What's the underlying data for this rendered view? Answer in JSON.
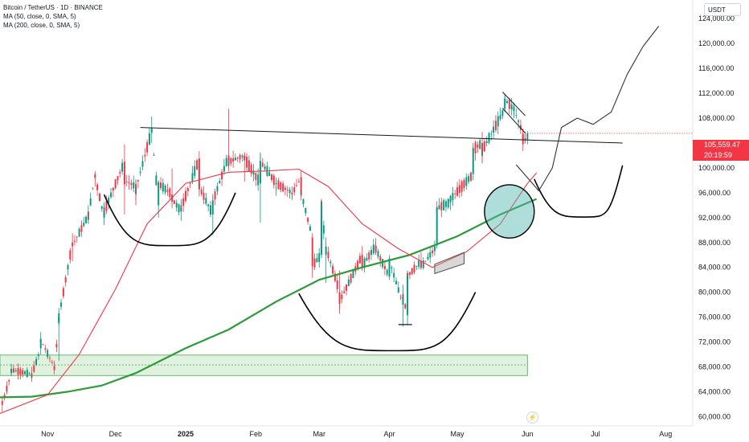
{
  "header": {
    "title": "Bitcoin / TetherUS · 1D · BINANCE",
    "ma50_label": "MA (50, close, 0, SMA, 5)",
    "ma200_label": "MA (200, close, 0, SMA, 5)",
    "currency_button": "USDT"
  },
  "price_tag": {
    "price": "105,559.47",
    "countdown": "20:19:59",
    "color": "#f23645"
  },
  "colors": {
    "up": "#089981",
    "down": "#f23645",
    "ma50": "#f23645",
    "ma200": "#2e9b3a",
    "zone": "#a5d6a7"
  },
  "icons": {
    "flash": "lightning-icon"
  },
  "chart_data": {
    "type": "candlestick",
    "title": "Bitcoin / TetherUS · 1D · BINANCE",
    "x_ticks": [
      "Nov",
      "Dec",
      "2025",
      "Feb",
      "Mar",
      "Apr",
      "May",
      "Jun",
      "Jul",
      "Aug"
    ],
    "y_ticks": [
      "60,000.00",
      "64,000.00",
      "68,000.00",
      "72,000.00",
      "76,000.00",
      "80,000.00",
      "84,000.00",
      "88,000.00",
      "92,000.00",
      "96,000.00",
      "100,000.00",
      "104,000.00",
      "108,000.00",
      "112,000.00",
      "116,000.00",
      "120,000.00",
      "124,000.00"
    ],
    "y_range": [
      58500,
      127000
    ],
    "date_range": [
      "2024-10-11",
      "2025-08-13"
    ],
    "ohlc_points": [
      [
        "2024-10-12",
        62500,
        63000,
        60800,
        62000
      ],
      [
        "2024-10-16",
        67000,
        68500,
        66500,
        67500
      ],
      [
        "2024-10-25",
        66800,
        68000,
        65600,
        66600
      ],
      [
        "2024-10-29",
        71000,
        73600,
        70000,
        72300
      ],
      [
        "2024-11-04",
        68000,
        69000,
        66800,
        67800
      ],
      [
        "2024-11-06",
        75000,
        76500,
        69000,
        76000
      ],
      [
        "2024-11-12",
        88000,
        89500,
        85000,
        87500
      ],
      [
        "2024-11-19",
        92300,
        94000,
        91000,
        92300
      ],
      [
        "2024-11-22",
        99000,
        99500,
        97000,
        98500
      ],
      [
        "2024-11-26",
        92000,
        94500,
        90800,
        93000
      ],
      [
        "2024-12-05",
        101000,
        103800,
        92500,
        98000
      ],
      [
        "2024-12-10",
        97000,
        98000,
        94000,
        96600
      ],
      [
        "2024-12-17",
        106000,
        108300,
        104000,
        106000
      ],
      [
        "2024-12-20",
        94000,
        98000,
        92000,
        97500
      ],
      [
        "2024-12-26",
        95700,
        99900,
        93500,
        95000
      ],
      [
        "2024-12-30",
        93000,
        95000,
        91500,
        93500
      ],
      [
        "2025-01-07",
        101500,
        102700,
        96000,
        96900
      ],
      [
        "2025-01-13",
        92500,
        95800,
        89200,
        94500
      ],
      [
        "2025-01-20",
        102000,
        109500,
        99500,
        101000
      ],
      [
        "2025-01-27",
        102000,
        102500,
        97800,
        101500
      ],
      [
        "2025-02-03",
        97500,
        102500,
        91200,
        101000
      ],
      [
        "2025-02-10",
        97500,
        98500,
        95500,
        97500
      ],
      [
        "2025-02-17",
        96000,
        97000,
        95000,
        95800
      ],
      [
        "2025-02-21",
        98500,
        99500,
        94800,
        96000
      ],
      [
        "2025-02-26",
        88800,
        89500,
        82300,
        84300
      ],
      [
        "2025-03-02",
        86000,
        95000,
        85500,
        94200
      ],
      [
        "2025-03-04",
        86000,
        88800,
        81500,
        87200
      ],
      [
        "2025-03-10",
        80000,
        83500,
        76600,
        78500
      ],
      [
        "2025-03-20",
        86000,
        87400,
        83600,
        84200
      ],
      [
        "2025-03-26",
        87500,
        88700,
        86000,
        86900
      ],
      [
        "2025-04-01",
        82500,
        85500,
        82000,
        85100
      ],
      [
        "2025-04-07",
        78000,
        81200,
        74500,
        79200
      ],
      [
        "2025-04-09",
        76300,
        83500,
        74700,
        82600
      ],
      [
        "2025-04-15",
        85000,
        86500,
        83600,
        84000
      ],
      [
        "2025-04-22",
        87500,
        93800,
        87000,
        93500
      ],
      [
        "2025-04-28",
        94500,
        95500,
        93200,
        95000
      ],
      [
        "2025-05-08",
        99000,
        104000,
        98000,
        103000
      ],
      [
        "2025-05-12",
        104000,
        105800,
        100700,
        102800
      ],
      [
        "2025-05-22",
        109500,
        111900,
        109000,
        111000
      ],
      [
        "2025-05-26",
        109400,
        110500,
        108500,
        109500
      ],
      [
        "2025-05-30",
        105500,
        106300,
        103600,
        104600
      ],
      [
        "2025-06-01",
        104600,
        105900,
        103800,
        105559
      ]
    ],
    "ma50_points": [
      [
        "2024-10-11",
        60500
      ],
      [
        "2024-11-01",
        63500
      ],
      [
        "2024-11-15",
        70000
      ],
      [
        "2024-12-01",
        80500
      ],
      [
        "2024-12-15",
        91000
      ],
      [
        "2025-01-01",
        97500
      ],
      [
        "2025-01-20",
        99300
      ],
      [
        "2025-02-05",
        99500
      ],
      [
        "2025-02-20",
        99800
      ],
      [
        "2025-03-05",
        97000
      ],
      [
        "2025-03-20",
        91000
      ],
      [
        "2025-04-05",
        87000
      ],
      [
        "2025-04-20",
        84000
      ],
      [
        "2025-05-05",
        86500
      ],
      [
        "2025-05-20",
        91000
      ],
      [
        "2025-06-01",
        97500
      ],
      [
        "2025-06-05",
        99200
      ]
    ],
    "ma200_points": [
      [
        "2024-10-11",
        63100
      ],
      [
        "2024-10-25",
        63200
      ],
      [
        "2024-11-10",
        64000
      ],
      [
        "2024-11-25",
        65000
      ],
      [
        "2024-12-10",
        67000
      ],
      [
        "2025-01-01",
        71000
      ],
      [
        "2025-01-20",
        74000
      ],
      [
        "2025-02-10",
        78500
      ],
      [
        "2025-03-01",
        82000
      ],
      [
        "2025-03-20",
        84000
      ],
      [
        "2025-04-10",
        86000
      ],
      [
        "2025-05-01",
        89000
      ],
      [
        "2025-05-20",
        92500
      ],
      [
        "2025-06-05",
        95000
      ]
    ],
    "resistance_line": [
      [
        "2024-12-12",
        106500
      ],
      [
        "2025-07-13",
        104000
      ]
    ],
    "support_zone": [
      66600,
      69900
    ],
    "support_zone_mid": 68300,
    "projection_path": [
      [
        "2025-05-27",
        100500
      ],
      [
        "2025-06-02",
        98000
      ],
      [
        "2025-06-06",
        96300
      ],
      [
        "2025-06-12",
        100000
      ],
      [
        "2025-06-16",
        106500
      ],
      [
        "2025-06-23",
        108000
      ],
      [
        "2025-06-30",
        107000
      ],
      [
        "2025-07-08",
        109000
      ],
      [
        "2025-07-15",
        115000
      ],
      [
        "2025-07-22",
        119500
      ],
      [
        "2025-07-29",
        122800
      ]
    ],
    "arcs": [
      {
        "from": [
          "2024-11-26",
          95700
        ],
        "bottom": [
          "2024-12-25",
          87500
        ],
        "to": [
          "2025-01-23",
          96000
        ]
      },
      {
        "from": [
          "2025-02-20",
          79800
        ],
        "bottom": [
          "2025-04-02",
          70600
        ],
        "to": [
          "2025-05-09",
          80000
        ]
      },
      {
        "from": [
          "2025-06-04",
          98200
        ],
        "bottom": [
          "2025-06-26",
          92100
        ],
        "to": [
          "2025-07-13",
          100400
        ]
      }
    ],
    "circle": {
      "center": [
        "2025-05-24",
        93000
      ],
      "radius_value": 4000
    },
    "flag": [
      [
        "2025-04-21",
        84500
      ],
      [
        "2025-05-04",
        86400
      ],
      [
        "2025-05-04",
        84600
      ],
      [
        "2025-04-21",
        83000
      ]
    ],
    "falling_channel": [
      [
        "2025-05-21",
        112200
      ],
      [
        "2025-05-31",
        108400
      ],
      [
        "2025-05-21",
        109600
      ],
      [
        "2025-05-31",
        105600
      ]
    ],
    "bottom_marker": [
      [
        "2025-04-05",
        74800
      ],
      [
        "2025-04-11",
        74800
      ]
    ],
    "grid": false,
    "legend": "top-left"
  }
}
